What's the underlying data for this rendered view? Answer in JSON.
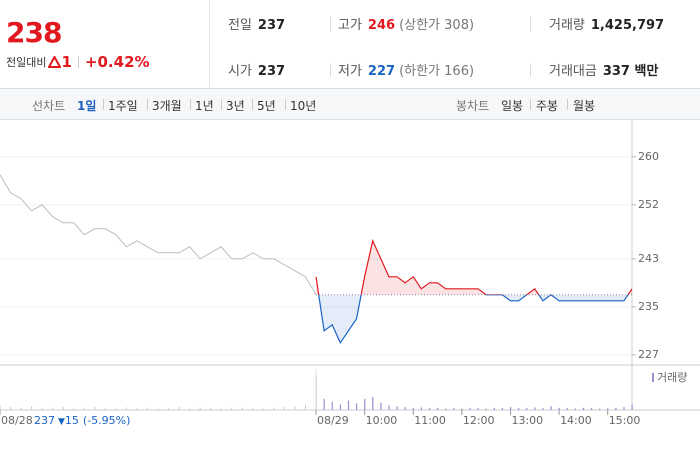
{
  "quote": {
    "price": "238",
    "change_label": "전일대비",
    "change": "1",
    "change_pct": "+0.42%"
  },
  "stats": [
    [
      {
        "label": "전일",
        "value": "237"
      },
      {
        "label": "고가",
        "value": "246",
        "extra": "(상한가 308)"
      },
      {
        "label": "거래량",
        "value": "1,425,797"
      }
    ],
    [
      {
        "label": "시가",
        "value": "237"
      },
      {
        "label": "저가",
        "value": "227",
        "extra": "(하한가 166)"
      },
      {
        "label": "거래대금",
        "value": "337 백만"
      }
    ]
  ],
  "tabs": {
    "line_label": "선차트",
    "line": [
      "1일",
      "1주일",
      "3개월",
      "1년",
      "3년",
      "5년",
      "10년"
    ],
    "candle_label": "봉차트",
    "candle": [
      "일봉",
      "주봉",
      "월봉"
    ]
  },
  "chart_data": {
    "type": "line",
    "xlim": [
      -390,
      390
    ],
    "ylim": [
      225.3,
      265.3
    ],
    "yticks": [
      260,
      252,
      243,
      235,
      227
    ],
    "xticks": [
      {
        "value": -390,
        "label": "08/28"
      },
      {
        "value": 0,
        "label": "08/29"
      },
      {
        "value": 60,
        "label": "10:00"
      },
      {
        "value": 120,
        "label": "11:00"
      },
      {
        "value": 180,
        "label": "12:00"
      },
      {
        "value": 240,
        "label": "13:00"
      },
      {
        "value": 300,
        "label": "14:00"
      },
      {
        "value": 360,
        "label": "15:00"
      }
    ],
    "baseline": 237,
    "volume_label": "거래량",
    "volume_color": "#9b8fd0",
    "vlim": [
      0,
      100
    ],
    "previous": {
      "color": "#bdbdbd",
      "volume_color": "#c8c8c8",
      "x": [
        -390,
        -377,
        -364,
        -351,
        -338,
        -325,
        -312,
        -299,
        -286,
        -273,
        -260,
        -247,
        -234,
        -221,
        -208,
        -195,
        -182,
        -169,
        -156,
        -143,
        -130,
        -117,
        -104,
        -91,
        -78,
        -65,
        -52,
        -39,
        -26,
        -13,
        0
      ],
      "values": [
        257,
        254,
        253,
        251,
        252,
        250,
        249,
        249,
        247,
        248,
        248,
        247,
        245,
        246,
        245,
        244,
        244,
        244,
        245,
        243,
        244,
        245,
        243,
        243,
        244,
        243,
        243,
        242,
        241,
        240,
        237
      ],
      "volume": [
        12,
        8,
        6,
        10,
        5,
        7,
        9,
        4,
        6,
        8,
        5,
        4,
        7,
        5,
        6,
        4,
        5,
        8,
        4,
        6,
        5,
        4,
        6,
        7,
        5,
        4,
        6,
        8,
        10,
        14,
        20
      ]
    },
    "summary": {
      "date": "08/28",
      "close": "237",
      "change": "15",
      "change_pct": "(-5.95%)"
    },
    "today": {
      "up_color": "#e1191f",
      "down_color": "#1863c6",
      "x": [
        0,
        10,
        20,
        30,
        40,
        50,
        60,
        70,
        80,
        90,
        100,
        110,
        120,
        130,
        140,
        150,
        160,
        170,
        180,
        190,
        200,
        210,
        220,
        230,
        240,
        250,
        260,
        270,
        280,
        290,
        300,
        310,
        320,
        330,
        340,
        350,
        360,
        370,
        380,
        390
      ],
      "values": [
        240,
        231,
        232,
        229,
        231,
        233,
        240,
        246,
        243,
        240,
        240,
        239,
        240,
        238,
        239,
        239,
        238,
        238,
        238,
        238,
        238,
        237,
        237,
        237,
        236,
        236,
        237,
        238,
        236,
        237,
        236,
        236,
        236,
        236,
        236,
        236,
        236,
        236,
        236,
        238
      ],
      "volume": [
        90,
        30,
        22,
        15,
        25,
        18,
        30,
        35,
        20,
        12,
        10,
        8,
        6,
        7,
        5,
        6,
        4,
        5,
        4,
        6,
        5,
        4,
        6,
        5,
        8,
        5,
        6,
        7,
        5,
        10,
        6,
        5,
        4,
        6,
        5,
        4,
        5,
        6,
        8,
        15
      ]
    }
  }
}
